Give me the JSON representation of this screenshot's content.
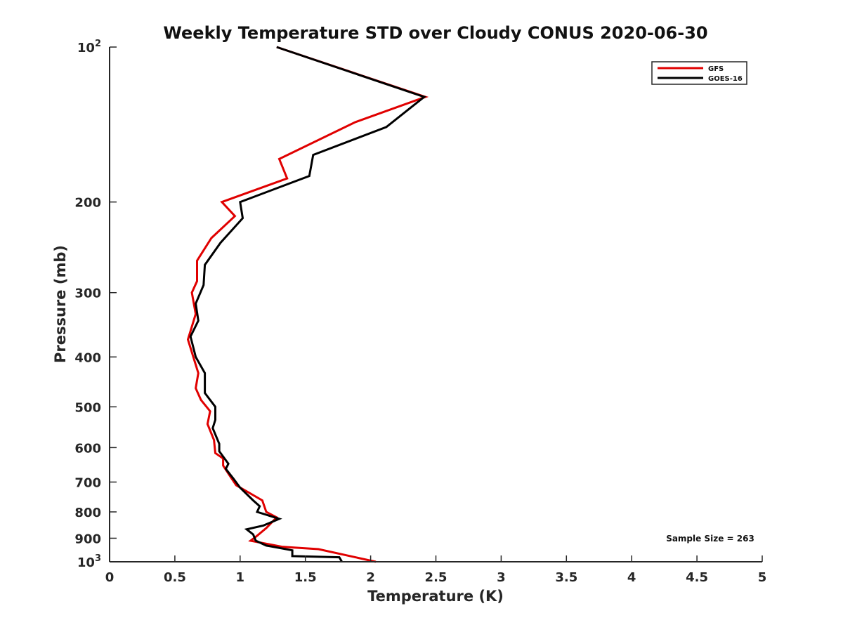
{
  "chart_data": {
    "type": "line",
    "title": "Weekly Temperature STD over Cloudy CONUS 2020-06-30",
    "xlabel": "Temperature (K)",
    "ylabel": "Pressure (mb)",
    "xlim": [
      0,
      5
    ],
    "ylim": [
      100,
      1000
    ],
    "y_scale": "log",
    "y_reversed": true,
    "x_ticks": [
      0,
      0.5,
      1,
      1.5,
      2,
      2.5,
      3,
      3.5,
      4,
      4.5,
      5
    ],
    "x_tick_labels": [
      "0",
      "0.5",
      "1",
      "1.5",
      "2",
      "2.5",
      "3",
      "3.5",
      "4",
      "4.5",
      "5"
    ],
    "y_ticks": [
      100,
      200,
      300,
      400,
      500,
      600,
      700,
      800,
      900,
      1000
    ],
    "y_tick_labels": [
      {
        "base": "10",
        "sup": "2"
      },
      {
        "base": "200",
        "sup": ""
      },
      {
        "base": "300",
        "sup": ""
      },
      {
        "base": "400",
        "sup": ""
      },
      {
        "base": "500",
        "sup": ""
      },
      {
        "base": "600",
        "sup": ""
      },
      {
        "base": "700",
        "sup": ""
      },
      {
        "base": "800",
        "sup": ""
      },
      {
        "base": "900",
        "sup": ""
      },
      {
        "base": "10",
        "sup": "3"
      }
    ],
    "grid": false,
    "legend_position": "top-right",
    "annotation": "Sample Size = 263",
    "series": [
      {
        "name": "GFS",
        "color": "#e00000",
        "points": [
          {
            "x": 1.28,
            "p": 100
          },
          {
            "x": 2.42,
            "p": 125
          },
          {
            "x": 1.88,
            "p": 140
          },
          {
            "x": 1.3,
            "p": 165
          },
          {
            "x": 1.36,
            "p": 180
          },
          {
            "x": 0.86,
            "p": 200
          },
          {
            "x": 0.96,
            "p": 213
          },
          {
            "x": 0.78,
            "p": 235
          },
          {
            "x": 0.67,
            "p": 260
          },
          {
            "x": 0.67,
            "p": 285
          },
          {
            "x": 0.63,
            "p": 300
          },
          {
            "x": 0.66,
            "p": 330
          },
          {
            "x": 0.6,
            "p": 370
          },
          {
            "x": 0.68,
            "p": 430
          },
          {
            "x": 0.66,
            "p": 460
          },
          {
            "x": 0.7,
            "p": 485
          },
          {
            "x": 0.77,
            "p": 510
          },
          {
            "x": 0.75,
            "p": 540
          },
          {
            "x": 0.8,
            "p": 580
          },
          {
            "x": 0.81,
            "p": 615
          },
          {
            "x": 0.87,
            "p": 630
          },
          {
            "x": 0.87,
            "p": 650
          },
          {
            "x": 0.92,
            "p": 680
          },
          {
            "x": 0.97,
            "p": 710
          },
          {
            "x": 1.17,
            "p": 760
          },
          {
            "x": 1.2,
            "p": 800
          },
          {
            "x": 1.28,
            "p": 820
          },
          {
            "x": 1.2,
            "p": 860
          },
          {
            "x": 1.13,
            "p": 890
          },
          {
            "x": 1.08,
            "p": 910
          },
          {
            "x": 1.32,
            "p": 935
          },
          {
            "x": 1.6,
            "p": 945
          },
          {
            "x": 2.04,
            "p": 1000
          }
        ]
      },
      {
        "name": "GOES-16",
        "color": "#000000",
        "points": [
          {
            "x": 1.28,
            "p": 100
          },
          {
            "x": 2.41,
            "p": 125
          },
          {
            "x": 2.12,
            "p": 143
          },
          {
            "x": 1.56,
            "p": 162
          },
          {
            "x": 1.53,
            "p": 178
          },
          {
            "x": 1.0,
            "p": 200
          },
          {
            "x": 1.02,
            "p": 215
          },
          {
            "x": 0.85,
            "p": 240
          },
          {
            "x": 0.73,
            "p": 265
          },
          {
            "x": 0.72,
            "p": 290
          },
          {
            "x": 0.66,
            "p": 315
          },
          {
            "x": 0.68,
            "p": 340
          },
          {
            "x": 0.62,
            "p": 365
          },
          {
            "x": 0.66,
            "p": 400
          },
          {
            "x": 0.73,
            "p": 430
          },
          {
            "x": 0.73,
            "p": 470
          },
          {
            "x": 0.81,
            "p": 500
          },
          {
            "x": 0.81,
            "p": 530
          },
          {
            "x": 0.79,
            "p": 550
          },
          {
            "x": 0.84,
            "p": 590
          },
          {
            "x": 0.84,
            "p": 610
          },
          {
            "x": 0.91,
            "p": 645
          },
          {
            "x": 0.89,
            "p": 660
          },
          {
            "x": 0.95,
            "p": 690
          },
          {
            "x": 1.0,
            "p": 718
          },
          {
            "x": 1.1,
            "p": 760
          },
          {
            "x": 1.15,
            "p": 780
          },
          {
            "x": 1.13,
            "p": 800
          },
          {
            "x": 1.3,
            "p": 825
          },
          {
            "x": 1.18,
            "p": 850
          },
          {
            "x": 1.05,
            "p": 865
          },
          {
            "x": 1.1,
            "p": 885
          },
          {
            "x": 1.12,
            "p": 910
          },
          {
            "x": 1.2,
            "p": 930
          },
          {
            "x": 1.4,
            "p": 950
          },
          {
            "x": 1.4,
            "p": 975
          },
          {
            "x": 1.76,
            "p": 980
          },
          {
            "x": 1.78,
            "p": 1000
          }
        ]
      }
    ]
  }
}
